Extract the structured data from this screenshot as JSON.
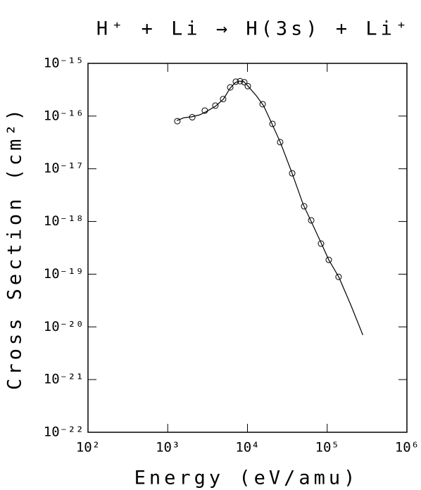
{
  "chart_data": {
    "type": "scatter",
    "title": "H⁺ + Li → H(3s) + Li⁺",
    "xlabel": "Energy (eV/amu)",
    "ylabel": "Cross Section (cm²)",
    "xscale": "log",
    "yscale": "log",
    "xlim": [
      100,
      1000000
    ],
    "ylim": [
      1e-22,
      1e-15
    ],
    "xticks": [
      {
        "value": 100,
        "label": "10²"
      },
      {
        "value": 1000,
        "label": "10³"
      },
      {
        "value": 10000,
        "label": "10⁴"
      },
      {
        "value": 100000,
        "label": "10⁵"
      },
      {
        "value": 1000000,
        "label": "10⁶"
      }
    ],
    "yticks": [
      {
        "value": 1e-22,
        "label": "10⁻²²"
      },
      {
        "value": 1e-21,
        "label": "10⁻²¹"
      },
      {
        "value": 1e-20,
        "label": "10⁻²⁰"
      },
      {
        "value": 1e-19,
        "label": "10⁻¹⁹"
      },
      {
        "value": 1e-18,
        "label": "10⁻¹⁸"
      },
      {
        "value": 1e-17,
        "label": "10⁻¹⁷"
      },
      {
        "value": 1e-16,
        "label": "10⁻¹⁶"
      },
      {
        "value": 1e-15,
        "label": "10⁻¹⁵"
      }
    ],
    "grid": false,
    "series": [
      {
        "style": "markers",
        "color": "#000000",
        "x": [
          1320,
          2030,
          2920,
          3960,
          4950,
          6080,
          7150,
          8080,
          9120,
          10100,
          15500,
          20600,
          25700,
          36400,
          51400,
          63000,
          83700,
          104700,
          139000
        ],
        "values": [
          8e-17,
          9.5e-17,
          1.27e-16,
          1.58e-16,
          2.1e-16,
          3.5e-16,
          4.5e-16,
          4.6e-16,
          4.4e-16,
          3.7e-16,
          1.68e-16,
          7.1e-17,
          3.2e-17,
          8.2e-18,
          1.94e-18,
          1.05e-18,
          3.8e-19,
          1.87e-19,
          8.9e-20
        ]
      },
      {
        "style": "line",
        "color": "#000000",
        "x": [
          1300,
          1600,
          2000,
          2500,
          3000,
          4000,
          5000,
          6000,
          7000,
          8000,
          9000,
          10000,
          13000,
          16000,
          20000,
          26000,
          36000,
          50000,
          64000,
          84000,
          105000,
          140000,
          200000,
          280000
        ],
        "values": [
          8.2e-17,
          9.3e-17,
          9.7e-17,
          1.05e-16,
          1.2e-16,
          1.55e-16,
          2.1e-16,
          3.3e-16,
          4.3e-16,
          4.6e-16,
          4.5e-16,
          3.8e-16,
          2.4e-16,
          1.55e-16,
          7.5e-17,
          3.1e-17,
          8.5e-18,
          2.1e-18,
          9.5e-19,
          3.9e-19,
          1.85e-19,
          8.8e-20,
          2.5e-20,
          7e-21
        ]
      }
    ]
  }
}
